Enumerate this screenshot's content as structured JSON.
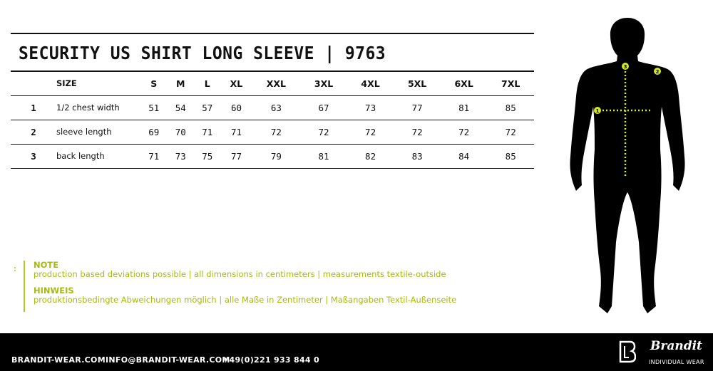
{
  "title": "SECURITY US SHIRT LONG SLEEVE | 9763",
  "table": {
    "size_label": "SIZE",
    "sizes": [
      "S",
      "M",
      "L",
      "XL",
      "XXL",
      "3XL",
      "4XL",
      "5XL",
      "6XL",
      "7XL"
    ],
    "rows": [
      {
        "num": "1",
        "label": "1/2 chest width",
        "values": [
          "51",
          "54",
          "57",
          "60",
          "63",
          "67",
          "73",
          "77",
          "81",
          "85"
        ]
      },
      {
        "num": "2",
        "label": "sleeve length",
        "values": [
          "69",
          "70",
          "71",
          "71",
          "72",
          "72",
          "72",
          "72",
          "72",
          "72"
        ]
      },
      {
        "num": "3",
        "label": "back length",
        "values": [
          "71",
          "73",
          "75",
          "77",
          "79",
          "81",
          "82",
          "83",
          "84",
          "85"
        ]
      }
    ]
  },
  "notes": {
    "note_title": "NOTE",
    "note_text": "production based deviations possible | all dimensions in centimeters  |  measurements textile-outside",
    "hinweis_title": "HINWEIS",
    "hinweis_text": "produktionsbedingte Abweichungen möglich  |  alle Maße in Zentimeter  |  Maßangaben Textil-Außenseite"
  },
  "figure": {
    "markers": [
      "1",
      "2",
      "3"
    ],
    "accent": "#d4e81a"
  },
  "footer": {
    "website": "BRANDIT-WEAR.COM",
    "email": "INFO@BRANDIT-WEAR.COM",
    "phone": "+49(0)221 933 844 0",
    "brand": "Brandit",
    "tagline": "INDIVIDUAL WEAR"
  }
}
